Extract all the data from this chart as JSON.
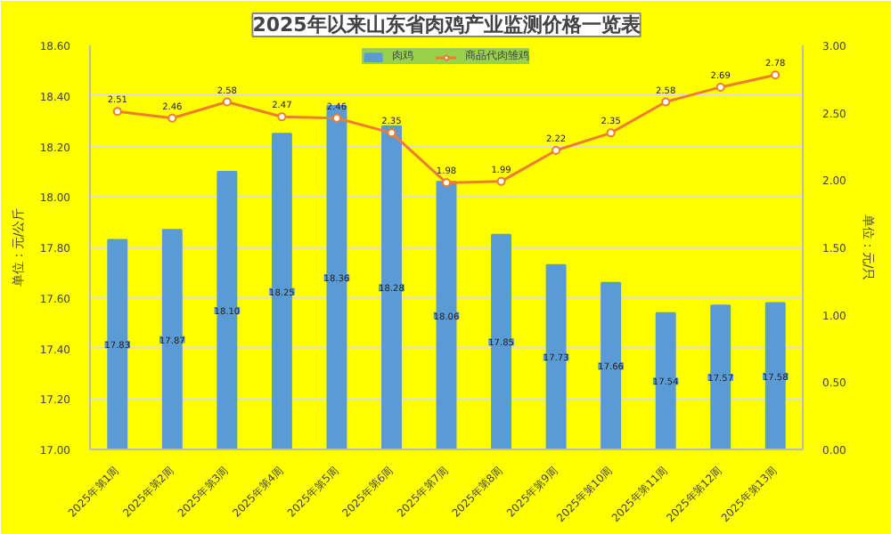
{
  "chart_data": {
    "type": "bar",
    "title": "2025年以来山东省肉鸡产业监测价格一览表",
    "ylabel": "单位：元/公斤",
    "y2label": "单位：元/只",
    "categories": [
      "2025年第1周",
      "2025年第2周",
      "2025年第3周",
      "2025年第4周",
      "2025年第5周",
      "2025年第6周",
      "2025年第7周",
      "2025年第8周",
      "2025年第9周",
      "2025年第10周",
      "2025年第11周",
      "2025年第12周",
      "2025年第13周"
    ],
    "series": [
      {
        "name": "肉鸡",
        "color": "#5b9bd5",
        "values": [
          17.83,
          17.87,
          18.1,
          18.25,
          18.36,
          18.28,
          18.06,
          17.85,
          17.73,
          17.66,
          17.54,
          17.57,
          17.58
        ],
        "value_labels": [
          "17.83",
          "17.87",
          "18.10",
          "18.25",
          "18.36",
          "18.28",
          "18.06",
          "17.85",
          "17.73",
          "17.66",
          "17.54",
          "17.57",
          "17.58"
        ]
      },
      {
        "name": "商品代肉雏鸡",
        "type": "line",
        "axis": "y2",
        "color": "#ed7d31",
        "marker": "circle",
        "values": [
          2.51,
          2.46,
          2.58,
          2.47,
          2.46,
          2.35,
          1.98,
          1.99,
          2.22,
          2.35,
          2.58,
          2.69,
          2.78
        ],
        "value_labels": [
          "2.51",
          "2.46",
          "2.58",
          "2.47",
          "2.46",
          "2.35",
          "1.98",
          "1.99",
          "2.22",
          "2.35",
          "2.58",
          "2.69",
          "2.78"
        ]
      }
    ],
    "ylim": [
      17.0,
      18.6
    ],
    "yticks": [
      {
        "value": 17.0,
        "label": "17.00"
      },
      {
        "value": 17.2,
        "label": "17.20"
      },
      {
        "value": 17.4,
        "label": "17.40"
      },
      {
        "value": 17.6,
        "label": "17.60"
      },
      {
        "value": 17.8,
        "label": "17.80"
      },
      {
        "value": 18.0,
        "label": "18.00"
      },
      {
        "value": 18.2,
        "label": "18.20"
      },
      {
        "value": 18.4,
        "label": "18.40"
      },
      {
        "value": 18.6,
        "label": "18.60"
      }
    ],
    "y2lim": [
      0,
      3
    ],
    "y2ticks": [
      {
        "value": 0,
        "label": "0.00"
      },
      {
        "value": 0.5,
        "label": "0.50"
      },
      {
        "value": 1,
        "label": "1.00"
      },
      {
        "value": 1.5,
        "label": "1.50"
      },
      {
        "value": 2,
        "label": "2.00"
      },
      {
        "value": 2.5,
        "label": "2.50"
      },
      {
        "value": 3,
        "label": "3.00"
      }
    ],
    "grid": "y",
    "legend": "top"
  }
}
